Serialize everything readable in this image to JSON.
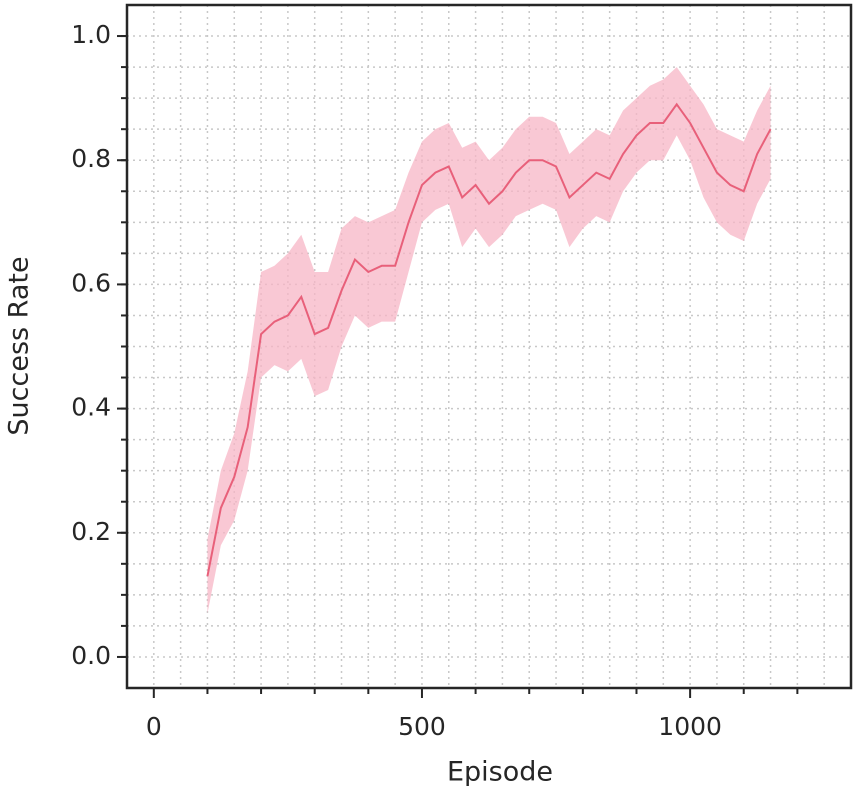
{
  "chart_data": {
    "type": "line",
    "x_label": "Episode",
    "y_label": "Success Rate",
    "x": [
      100,
      125,
      150,
      175,
      200,
      225,
      250,
      275,
      300,
      325,
      350,
      375,
      400,
      425,
      450,
      475,
      500,
      525,
      550,
      575,
      600,
      625,
      650,
      675,
      700,
      725,
      750,
      775,
      800,
      825,
      850,
      875,
      900,
      925,
      950,
      975,
      1000,
      1025,
      1050,
      1075,
      1100,
      1125,
      1150
    ],
    "series": [
      {
        "color": "#e8607a",
        "band_color": "#f7b6c6",
        "values": [
          0.13,
          0.24,
          0.29,
          0.37,
          0.52,
          0.54,
          0.55,
          0.58,
          0.52,
          0.53,
          0.59,
          0.64,
          0.62,
          0.63,
          0.63,
          0.7,
          0.76,
          0.78,
          0.79,
          0.74,
          0.76,
          0.73,
          0.75,
          0.78,
          0.8,
          0.8,
          0.79,
          0.74,
          0.76,
          0.78,
          0.77,
          0.81,
          0.84,
          0.86,
          0.86,
          0.89,
          0.86,
          0.82,
          0.78,
          0.76,
          0.75,
          0.81,
          0.85
        ],
        "lower": [
          0.07,
          0.18,
          0.22,
          0.3,
          0.45,
          0.47,
          0.46,
          0.48,
          0.42,
          0.43,
          0.5,
          0.55,
          0.53,
          0.54,
          0.54,
          0.62,
          0.7,
          0.72,
          0.73,
          0.66,
          0.69,
          0.66,
          0.68,
          0.71,
          0.72,
          0.73,
          0.72,
          0.66,
          0.69,
          0.71,
          0.7,
          0.75,
          0.78,
          0.8,
          0.8,
          0.84,
          0.8,
          0.74,
          0.7,
          0.68,
          0.67,
          0.73,
          0.77
        ],
        "upper": [
          0.19,
          0.3,
          0.36,
          0.46,
          0.62,
          0.63,
          0.65,
          0.68,
          0.62,
          0.62,
          0.69,
          0.71,
          0.7,
          0.71,
          0.72,
          0.78,
          0.83,
          0.85,
          0.86,
          0.82,
          0.83,
          0.8,
          0.82,
          0.85,
          0.87,
          0.87,
          0.86,
          0.81,
          0.83,
          0.85,
          0.84,
          0.88,
          0.9,
          0.92,
          0.93,
          0.95,
          0.92,
          0.89,
          0.85,
          0.84,
          0.83,
          0.88,
          0.92
        ]
      }
    ],
    "xlim": [
      -50,
      1300
    ],
    "ylim": [
      -0.05,
      1.05
    ],
    "xticks": [
      0,
      500,
      1000
    ],
    "yticks": [
      {
        "value": 0,
        "label": "0.0"
      },
      0.2,
      0.4,
      0.6,
      0.8,
      {
        "value": 1,
        "label": "1.0"
      }
    ],
    "x_minor_ticks": [
      100,
      200,
      300,
      400,
      600,
      700,
      800,
      900,
      1100,
      1200
    ],
    "x_grid": [
      -50,
      0,
      50,
      100,
      150,
      200,
      250,
      300,
      350,
      400,
      450,
      500,
      550,
      600,
      650,
      700,
      750,
      800,
      850,
      900,
      950,
      1000,
      1050,
      1100,
      1150,
      1200,
      1250
    ],
    "y_grid": [
      0,
      0.05,
      0.1,
      0.15,
      0.2,
      0.25,
      0.3,
      0.35,
      0.4,
      0.45,
      0.5,
      0.55,
      0.6,
      0.65,
      0.7,
      0.75,
      0.8,
      0.85,
      0.9,
      0.95,
      1
    ],
    "grid": true
  }
}
